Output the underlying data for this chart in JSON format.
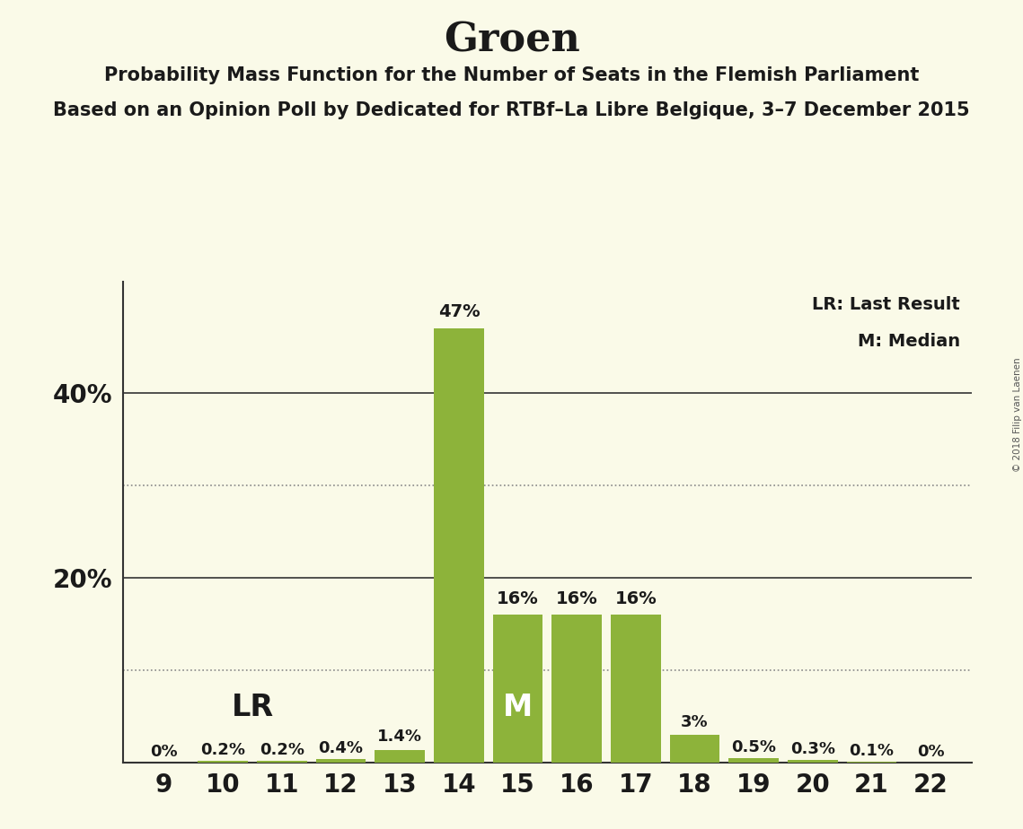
{
  "title": "Groen",
  "subtitle1": "Probability Mass Function for the Number of Seats in the Flemish Parliament",
  "subtitle2": "Based on an Opinion Poll by Dedicated for RTBf–La Libre Belgique, 3–7 December 2015",
  "watermark": "© 2018 Filip van Laenen",
  "legend_lr": "LR: Last Result",
  "legend_m": "M: Median",
  "seats": [
    9,
    10,
    11,
    12,
    13,
    14,
    15,
    16,
    17,
    18,
    19,
    20,
    21,
    22
  ],
  "probabilities": [
    0.0,
    0.2,
    0.2,
    0.4,
    1.4,
    47.0,
    16.0,
    16.0,
    16.0,
    3.0,
    0.5,
    0.3,
    0.1,
    0.0
  ],
  "labels": [
    "0%",
    "0.2%",
    "0.2%",
    "0.4%",
    "1.4%",
    "47%",
    "16%",
    "16%",
    "16%",
    "3%",
    "0.5%",
    "0.3%",
    "0.1%",
    "0%"
  ],
  "bar_color": "#8db33a",
  "background_color": "#fafae8",
  "text_color": "#1a1a1a",
  "lr_seat": 10,
  "median_seat": 15,
  "ylim": [
    0,
    52
  ],
  "dotted_lines": [
    10,
    30
  ],
  "solid_lines": [
    20,
    40
  ]
}
